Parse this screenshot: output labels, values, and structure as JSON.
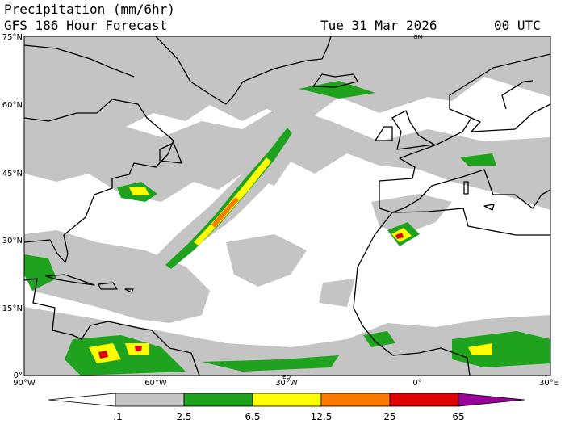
{
  "header": {
    "title": "Precipitation (mm/6hr)",
    "subtitle": "GFS 186 Hour Forecast",
    "date": "Tue 31 Mar 2026",
    "time": "00 UTC"
  },
  "map": {
    "lat_labels": [
      "75°N",
      "60°N",
      "45°N",
      "30°N",
      "15°N",
      "0°"
    ],
    "lon_labels": [
      "90°W",
      "60°W",
      "30°W",
      "0°",
      "30°E"
    ],
    "annotations": [
      "GM",
      "EQ"
    ]
  },
  "colorbar": {
    "labels": [
      ".1",
      "2.5",
      "6.5",
      "12.5",
      "25",
      "65"
    ]
  }
}
